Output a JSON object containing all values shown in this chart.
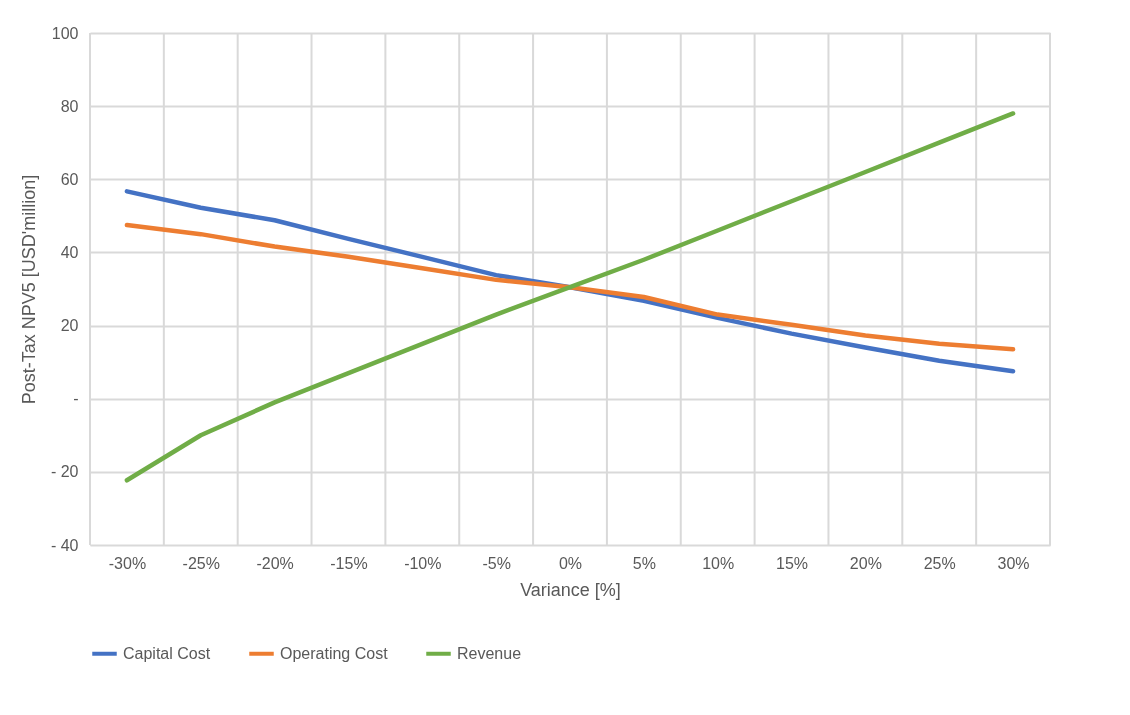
{
  "chart_data": {
    "type": "line",
    "xlabel": "Variance [%]",
    "ylabel": "Post-Tax NPV5  [USD'million]",
    "categories": [
      "-30%",
      "-25%",
      "-20%",
      "-15%",
      "-10%",
      "-5%",
      "0%",
      "5%",
      "10%",
      "15%",
      "20%",
      "25%",
      "30%"
    ],
    "series": [
      {
        "name": "Capital Cost",
        "color": "#4472c4",
        "values": [
          56.7,
          52.2,
          48.8,
          43.7,
          38.8,
          33.8,
          30.5,
          26.8,
          22.1,
          17.8,
          14,
          10.4,
          7.5
        ]
      },
      {
        "name": "Operating Cost",
        "color": "#ed7d31",
        "values": [
          47.5,
          45,
          41.6,
          38.8,
          35.7,
          32.5,
          30.5,
          27.8,
          23,
          20.2,
          17.3,
          15,
          13.5
        ]
      },
      {
        "name": "Revenue",
        "color": "#70ad47",
        "values": [
          -22.3,
          -10,
          -1,
          7,
          15,
          23,
          30.5,
          38,
          46,
          54,
          62,
          70,
          78
        ]
      }
    ],
    "ylim": [
      -40,
      100
    ],
    "yticks": [
      {
        "value": -40,
        "label": "- 40"
      },
      {
        "value": -20,
        "label": "- 20"
      },
      {
        "value": 0,
        "label": "-"
      },
      20,
      40,
      60,
      80,
      100
    ],
    "grid": true,
    "legend": "bottom",
    "marker": "none",
    "line_style": "solid"
  }
}
